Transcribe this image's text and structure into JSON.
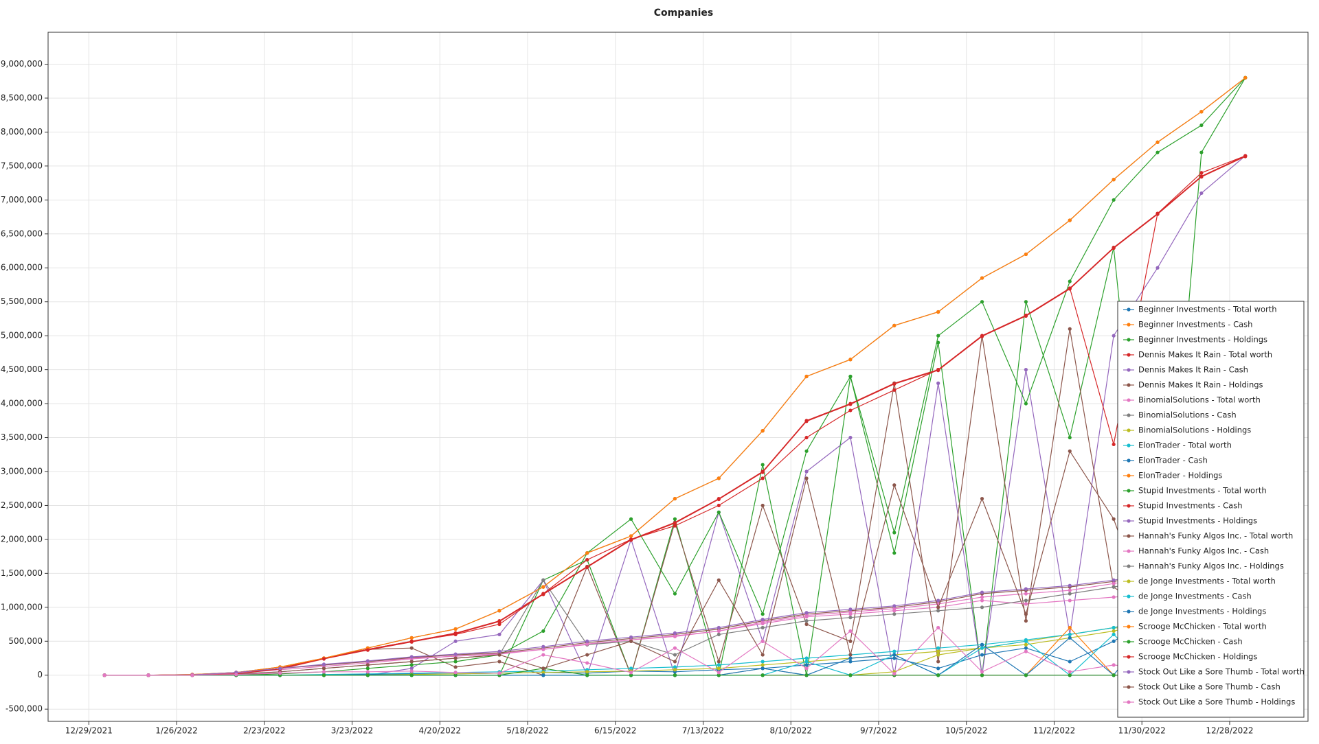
{
  "chart_data": {
    "type": "line",
    "title": "Companies",
    "x": [
      "1/3/2022",
      "1/17/2022",
      "1/31/2022",
      "2/14/2022",
      "2/28/2022",
      "3/14/2022",
      "3/28/2022",
      "4/11/2022",
      "4/25/2022",
      "5/9/2022",
      "5/23/2022",
      "6/6/2022",
      "6/20/2022",
      "7/4/2022",
      "7/18/2022",
      "8/1/2022",
      "8/15/2022",
      "8/29/2022",
      "9/12/2022",
      "9/26/2022",
      "10/10/2022",
      "10/24/2022",
      "11/7/2022",
      "11/21/2022",
      "12/5/2022",
      "12/19/2022",
      "1/2/2023"
    ],
    "xlim": [
      "12/16/2021",
      "1/22/2023"
    ],
    "xticks": [
      "12/29/2021",
      "1/26/2022",
      "2/23/2022",
      "3/23/2022",
      "4/20/2022",
      "5/18/2022",
      "6/15/2022",
      "7/13/2022",
      "8/10/2022",
      "9/7/2022",
      "10/5/2022",
      "11/2/2022",
      "11/30/2022",
      "12/28/2022"
    ],
    "ylim": [
      -680000,
      9470000
    ],
    "yticks": [
      {
        "value": -500000,
        "label": "-500,000"
      },
      0,
      {
        "value": 500000,
        "label": "500,000"
      },
      {
        "value": 1000000,
        "label": "1,000,000"
      },
      {
        "value": 1500000,
        "label": "1,500,000"
      },
      {
        "value": 2000000,
        "label": "2,000,000"
      },
      {
        "value": 2500000,
        "label": "2,500,000"
      },
      {
        "value": 3000000,
        "label": "3,000,000"
      },
      {
        "value": 3500000,
        "label": "3,500,000"
      },
      {
        "value": 4000000,
        "label": "4,000,000"
      },
      {
        "value": 4500000,
        "label": "4,500,000"
      },
      {
        "value": 5000000,
        "label": "5,000,000"
      },
      {
        "value": 5500000,
        "label": "5,500,000"
      },
      {
        "value": 6000000,
        "label": "6,000,000"
      },
      {
        "value": 6500000,
        "label": "6,500,000"
      },
      {
        "value": 7000000,
        "label": "7,000,000"
      },
      {
        "value": 7500000,
        "label": "7,500,000"
      },
      {
        "value": 8000000,
        "label": "8,000,000"
      },
      {
        "value": 8500000,
        "label": "8,500,000"
      },
      {
        "value": 9000000,
        "label": "9,000,000"
      }
    ],
    "grid": true,
    "legend": "lower right",
    "series": [
      {
        "name": "Beginner Investments - Total worth",
        "color": "#1f77b4",
        "values": [
          0,
          0,
          10000,
          40000,
          120000,
          250000,
          400000,
          550000,
          680000,
          950000,
          1300000,
          1800000,
          2050000,
          2600000,
          2900000,
          3600000,
          4400000,
          4650000,
          5150000,
          5350000,
          5850000,
          6200000,
          6700000,
          7300000,
          7850000,
          8300000,
          8800000
        ]
      },
      {
        "name": "Beginner Investments - Cash",
        "color": "#ff7f0e",
        "values": [
          0,
          0,
          10000,
          40000,
          120000,
          250000,
          400000,
          550000,
          680000,
          950000,
          1300000,
          1800000,
          2050000,
          2600000,
          2900000,
          3600000,
          4400000,
          4650000,
          5150000,
          5350000,
          5850000,
          6200000,
          6700000,
          7300000,
          7850000,
          8300000,
          8800000
        ]
      },
      {
        "name": "Beginner Investments - Holdings",
        "color": "#2ca02c",
        "values": [
          0,
          0,
          0,
          0,
          0,
          0,
          0,
          0,
          0,
          0,
          1400000,
          1700000,
          0,
          2300000,
          0,
          3100000,
          0,
          4400000,
          1800000,
          4900000,
          0,
          5500000,
          3500000,
          6300000,
          0,
          7700000,
          8800000
        ]
      },
      {
        "name": "Dennis Makes It Rain - Total worth",
        "color": "#d62728",
        "values": [
          0,
          0,
          5000,
          30000,
          100000,
          250000,
          380000,
          500000,
          620000,
          800000,
          1200000,
          1600000,
          2000000,
          2250000,
          2600000,
          3000000,
          3750000,
          4000000,
          4300000,
          4500000,
          5000000,
          5300000,
          5700000,
          6300000,
          6800000,
          7350000,
          7650000
        ]
      },
      {
        "name": "Dennis Makes It Rain - Cash",
        "color": "#9467bd",
        "values": [
          0,
          0,
          0,
          0,
          0,
          0,
          0,
          100000,
          500000,
          600000,
          1400000,
          0,
          2000000,
          0,
          2400000,
          500000,
          3000000,
          3500000,
          0,
          4300000,
          0,
          4500000,
          600000,
          5000000,
          6000000,
          7100000,
          7650000
        ]
      },
      {
        "name": "Dennis Makes It Rain - Holdings",
        "color": "#8c564b",
        "values": [
          0,
          0,
          5000,
          30000,
          100000,
          250000,
          380000,
          400000,
          120000,
          200000,
          0,
          1600000,
          0,
          2250000,
          200000,
          2500000,
          750000,
          500000,
          4300000,
          200000,
          5000000,
          800000,
          5100000,
          1300000,
          800000,
          250000,
          0
        ]
      },
      {
        "name": "BinomialSolutions - Total worth",
        "color": "#e377c2",
        "values": [
          0,
          0,
          5000,
          40000,
          100000,
          150000,
          200000,
          250000,
          280000,
          320000,
          380000,
          450000,
          520000,
          570000,
          650000,
          760000,
          860000,
          900000,
          950000,
          1000000,
          1100000,
          1050000,
          1100000,
          1150000,
          1200000,
          1250000,
          1300000
        ]
      },
      {
        "name": "BinomialSolutions - Cash",
        "color": "#7f7f7f",
        "values": [
          0,
          0,
          0,
          20000,
          50000,
          100000,
          150000,
          200000,
          250000,
          300000,
          1400000,
          450000,
          500000,
          300000,
          600000,
          700000,
          800000,
          850000,
          900000,
          950000,
          1000000,
          1100000,
          1200000,
          1300000,
          1400000,
          1500000,
          1520000
        ]
      },
      {
        "name": "BinomialSolutions - Holdings",
        "color": "#bcbd22",
        "values": [
          0,
          0,
          0,
          0,
          0,
          0,
          0,
          0,
          0,
          0,
          0,
          0,
          0,
          0,
          0,
          0,
          0,
          0,
          50000,
          300000,
          400000,
          500000,
          600000,
          700000,
          650000,
          0,
          0
        ]
      },
      {
        "name": "ElonTrader - Total worth",
        "color": "#17becf",
        "values": [
          0,
          0,
          0,
          0,
          0,
          10000,
          20000,
          30000,
          40000,
          50000,
          60000,
          80000,
          100000,
          120000,
          150000,
          200000,
          250000,
          300000,
          350000,
          400000,
          450000,
          520000,
          600000,
          700000,
          850000,
          950000,
          1000000
        ]
      },
      {
        "name": "ElonTrader - Cash",
        "color": "#1f77b4",
        "values": [
          0,
          0,
          0,
          0,
          0,
          0,
          10000,
          20000,
          20000,
          30000,
          40000,
          30000,
          60000,
          50000,
          80000,
          100000,
          150000,
          200000,
          250000,
          100000,
          300000,
          400000,
          200000,
          500000,
          900000,
          600000,
          950000
        ]
      },
      {
        "name": "ElonTrader - Holdings",
        "color": "#ff7f0e",
        "values": [
          0,
          0,
          0,
          0,
          0,
          0,
          0,
          0,
          0,
          0,
          0,
          0,
          0,
          0,
          0,
          0,
          0,
          0,
          0,
          0,
          0,
          0,
          700000,
          0,
          0,
          0,
          0
        ]
      },
      {
        "name": "Stupid Investments - Total worth",
        "color": "#2ca02c",
        "values": [
          0,
          0,
          0,
          0,
          20000,
          50000,
          100000,
          150000,
          200000,
          300000,
          650000,
          1800000,
          2300000,
          1200000,
          2400000,
          900000,
          3300000,
          4400000,
          2100000,
          5000000,
          5500000,
          4000000,
          5800000,
          7000000,
          7700000,
          8100000,
          8800000
        ]
      },
      {
        "name": "Stupid Investments - Cash",
        "color": "#d62728",
        "values": [
          0,
          0,
          5000,
          30000,
          100000,
          250000,
          380000,
          500000,
          600000,
          750000,
          1200000,
          1700000,
          2000000,
          2200000,
          2500000,
          2900000,
          3500000,
          3900000,
          4200000,
          4500000,
          5000000,
          5300000,
          5700000,
          3400000,
          6800000,
          7400000,
          7650000
        ]
      },
      {
        "name": "Stupid Investments - Holdings",
        "color": "#9467bd",
        "values": [
          0,
          0,
          0,
          0,
          0,
          0,
          0,
          0,
          0,
          0,
          0,
          0,
          0,
          0,
          0,
          0,
          0,
          0,
          0,
          0,
          0,
          0,
          0,
          0,
          0,
          0,
          0
        ]
      },
      {
        "name": "Hannah's Funky Algos Inc. - Total worth",
        "color": "#8c564b",
        "values": [
          0,
          0,
          5000,
          40000,
          100000,
          150000,
          200000,
          260000,
          300000,
          330000,
          400000,
          480000,
          540000,
          600000,
          680000,
          800000,
          900000,
          950000,
          1000000,
          1080000,
          1200000,
          1250000,
          1300000,
          1380000,
          1500000,
          1550000,
          1530000
        ]
      },
      {
        "name": "Hannah's Funky Algos Inc. - Cash",
        "color": "#e377c2",
        "values": [
          0,
          0,
          0,
          30000,
          80000,
          130000,
          180000,
          240000,
          280000,
          310000,
          380000,
          460000,
          520000,
          580000,
          650000,
          780000,
          880000,
          930000,
          980000,
          1050000,
          1150000,
          1200000,
          1250000,
          1350000,
          1450000,
          1500000,
          1500000
        ]
      },
      {
        "name": "Hannah's Funky Algos Inc. - Holdings",
        "color": "#7f7f7f",
        "values": [
          0,
          0,
          0,
          0,
          0,
          0,
          0,
          0,
          0,
          0,
          0,
          0,
          0,
          0,
          0,
          100000,
          0,
          0,
          0,
          0,
          0,
          0,
          0,
          0,
          0,
          0,
          0
        ]
      },
      {
        "name": "de Jonge Investments - Total worth",
        "color": "#bcbd22",
        "values": [
          0,
          0,
          0,
          0,
          0,
          0,
          0,
          10000,
          20000,
          30000,
          40000,
          50000,
          60000,
          80000,
          100000,
          150000,
          200000,
          250000,
          300000,
          350000,
          400000,
          450000,
          550000,
          650000,
          800000,
          900000,
          950000
        ]
      },
      {
        "name": "de Jonge Investments - Cash",
        "color": "#17becf",
        "values": [
          0,
          0,
          0,
          0,
          0,
          0,
          0,
          0,
          0,
          0,
          0,
          0,
          0,
          0,
          0,
          0,
          200000,
          0,
          300000,
          0,
          400000,
          500000,
          0,
          600000,
          0,
          900000,
          0
        ]
      },
      {
        "name": "de Jonge Investments - Holdings",
        "color": "#1f77b4",
        "values": [
          0,
          0,
          0,
          0,
          0,
          0,
          0,
          0,
          0,
          0,
          0,
          0,
          0,
          0,
          0,
          100000,
          0,
          250000,
          300000,
          0,
          450000,
          0,
          550000,
          0,
          850000,
          0,
          950000
        ]
      },
      {
        "name": "Scrooge McChicken - Total worth",
        "color": "#ff7f0e",
        "values": [
          0,
          0,
          10000,
          40000,
          120000,
          250000,
          400000,
          550000,
          680000,
          950000,
          1300000,
          1800000,
          2050000,
          2600000,
          2900000,
          3600000,
          4400000,
          4650000,
          5150000,
          5350000,
          5850000,
          6200000,
          6700000,
          7300000,
          7850000,
          8300000,
          8800000
        ]
      },
      {
        "name": "Scrooge McChicken - Cash",
        "color": "#2ca02c",
        "values": [
          0,
          0,
          0,
          0,
          0,
          0,
          0,
          0,
          0,
          0,
          100000,
          0,
          0,
          0,
          0,
          0,
          0,
          0,
          0,
          0,
          0,
          0,
          0,
          0,
          0,
          0,
          0
        ]
      },
      {
        "name": "Scrooge McChicken - Holdings",
        "color": "#d62728",
        "values": [
          0,
          0,
          0,
          20000,
          90000,
          240000,
          370000,
          490000,
          610000,
          790000,
          1190000,
          1590000,
          1990000,
          2240000,
          2590000,
          2990000,
          3740000,
          3990000,
          4290000,
          4490000,
          4990000,
          5290000,
          5690000,
          6290000,
          6790000,
          7340000,
          7640000
        ]
      },
      {
        "name": "Stock Out Like a Sore Thumb - Total worth",
        "color": "#9467bd",
        "values": [
          0,
          0,
          5000,
          40000,
          100000,
          160000,
          210000,
          270000,
          310000,
          350000,
          420000,
          500000,
          560000,
          620000,
          700000,
          820000,
          920000,
          970000,
          1020000,
          1100000,
          1220000,
          1270000,
          1320000,
          1400000,
          1520000,
          1560000,
          1540000
        ]
      },
      {
        "name": "Stock Out Like a Sore Thumb - Cash",
        "color": "#8c564b",
        "values": [
          0,
          0,
          0,
          10000,
          50000,
          100000,
          150000,
          200000,
          250000,
          300000,
          100000,
          300000,
          500000,
          200000,
          1400000,
          300000,
          2900000,
          300000,
          2800000,
          1000000,
          2600000,
          900000,
          3300000,
          2300000,
          500000,
          1500000,
          1500000
        ]
      },
      {
        "name": "Stock Out Like a Sore Thumb - Holdings",
        "color": "#e377c2",
        "values": [
          0,
          0,
          0,
          10000,
          30000,
          50000,
          50000,
          60000,
          40000,
          30000,
          300000,
          180000,
          40000,
          400000,
          40000,
          500000,
          100000,
          650000,
          20000,
          700000,
          50000,
          350000,
          50000,
          150000,
          80000,
          50000,
          30000
        ]
      }
    ]
  }
}
